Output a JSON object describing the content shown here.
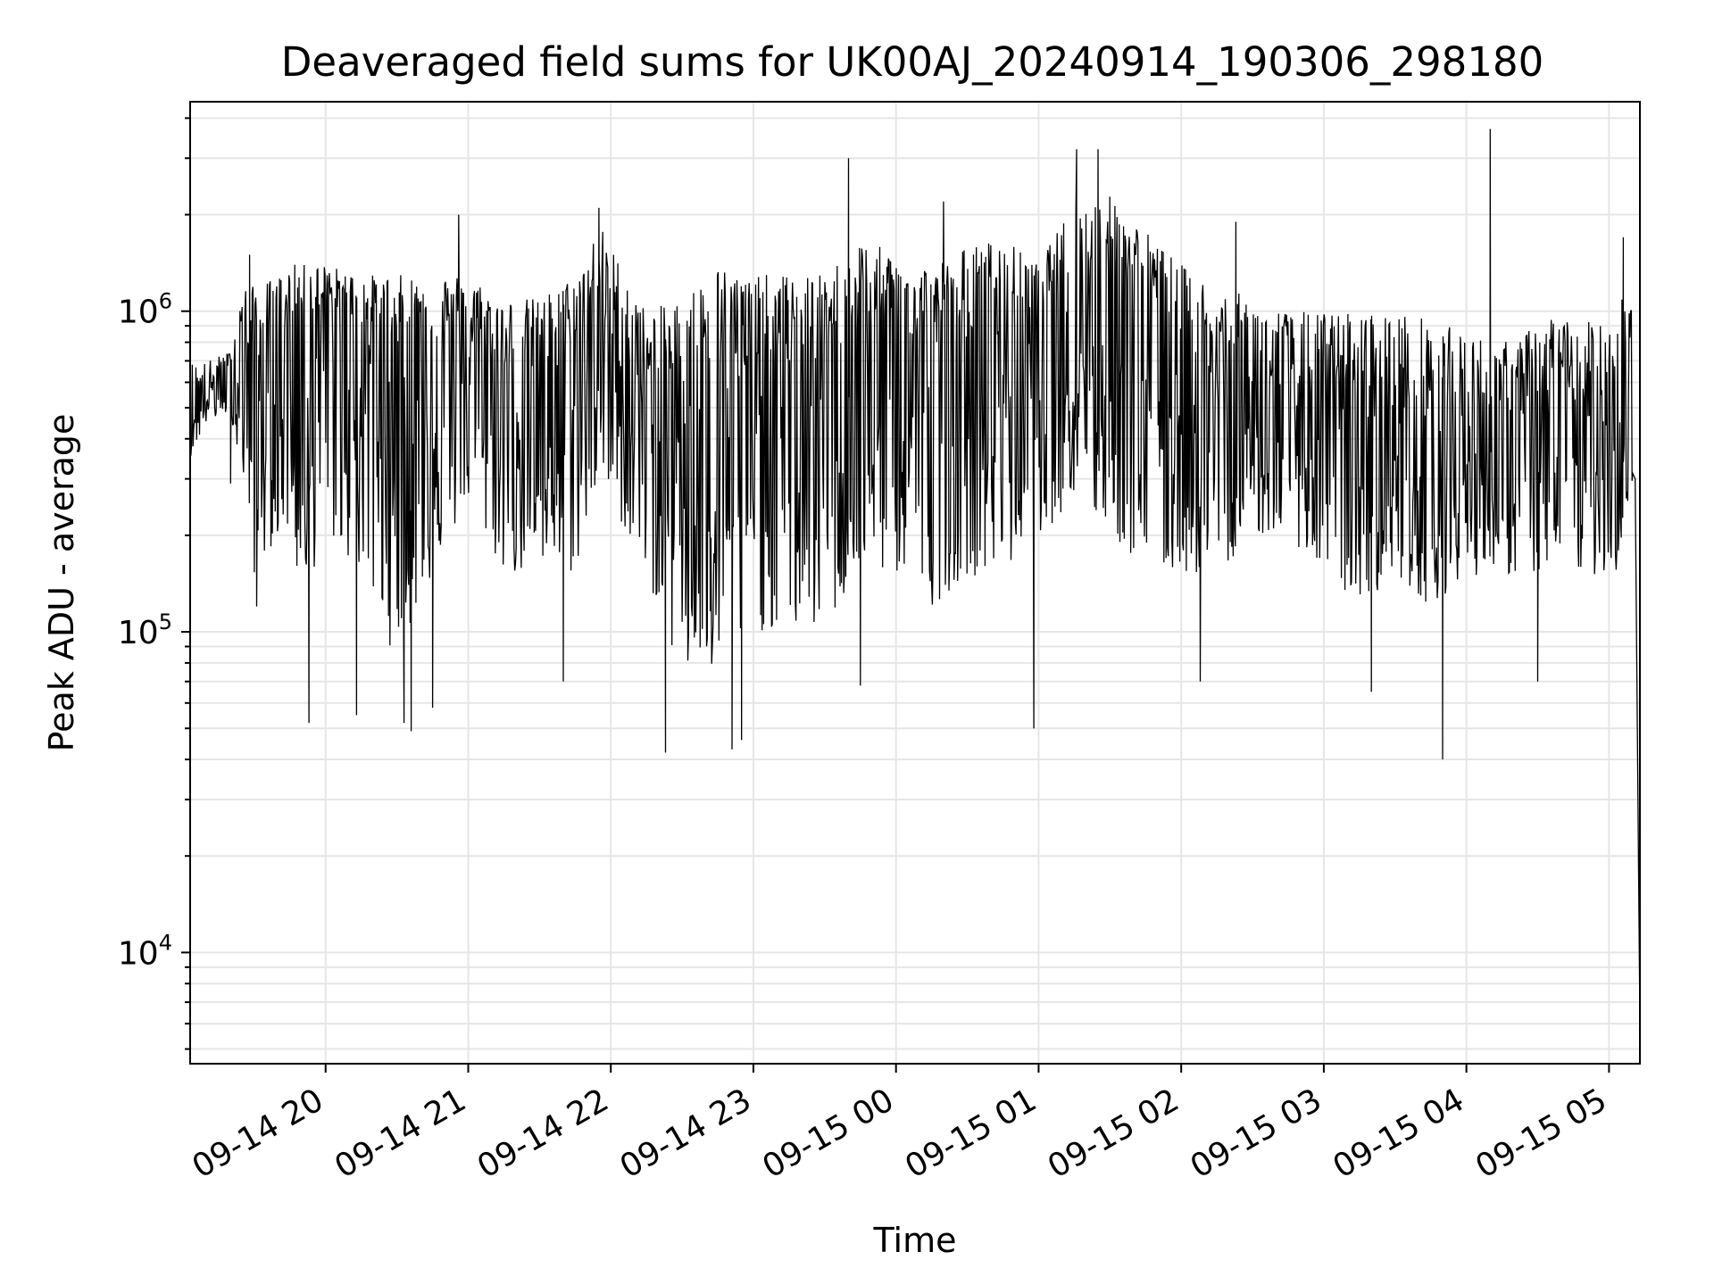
{
  "chart_data": {
    "type": "line",
    "title": "Deaveraged field sums for UK00AJ_20240914_190306_298180",
    "xlabel": "Time",
    "ylabel": "Peak ADU - average",
    "yscale": "log",
    "ylim": [
      4500,
      4500000
    ],
    "xlim": [
      "2024-09-14 19:03",
      "2024-09-15 05:13"
    ],
    "x_ticks": [
      {
        "value": "2024-09-14 20:00",
        "label": "09-14 20"
      },
      {
        "value": "2024-09-14 21:00",
        "label": "09-14 21"
      },
      {
        "value": "2024-09-14 22:00",
        "label": "09-14 22"
      },
      {
        "value": "2024-09-14 23:00",
        "label": "09-14 23"
      },
      {
        "value": "2024-09-15 00:00",
        "label": "09-15 00"
      },
      {
        "value": "2024-09-15 01:00",
        "label": "09-15 01"
      },
      {
        "value": "2024-09-15 02:00",
        "label": "09-15 02"
      },
      {
        "value": "2024-09-15 03:00",
        "label": "09-15 03"
      },
      {
        "value": "2024-09-15 04:00",
        "label": "09-15 04"
      },
      {
        "value": "2024-09-15 05:00",
        "label": "09-15 05"
      }
    ],
    "y_ticks": [
      {
        "value": 10000,
        "base": "10",
        "exp": "4"
      },
      {
        "value": 100000,
        "base": "10",
        "exp": "5"
      },
      {
        "value": 1000000,
        "base": "10",
        "exp": "6"
      }
    ],
    "grid": true,
    "line_color": "#000000",
    "grid_color": "#e6e6e6",
    "series": [
      {
        "x": [
          "2024-09-14 19:03",
          "2024-09-14 19:10",
          "2024-09-14 19:20",
          "2024-09-14 19:25",
          "2024-09-14 19:30",
          "2024-09-14 19:40",
          "2024-09-14 19:45",
          "2024-09-14 19:50",
          "2024-09-14 20:00",
          "2024-09-14 20:15",
          "2024-09-14 20:30",
          "2024-09-14 20:45",
          "2024-09-14 21:00",
          "2024-09-14 21:15",
          "2024-09-14 21:30",
          "2024-09-14 21:45",
          "2024-09-14 21:55",
          "2024-09-14 22:15",
          "2024-09-14 22:30",
          "2024-09-14 22:45",
          "2024-09-14 23:00",
          "2024-09-14 23:15",
          "2024-09-14 23:30",
          "2024-09-14 23:45",
          "2024-09-15 00:00",
          "2024-09-15 00:15",
          "2024-09-15 00:30",
          "2024-09-15 00:45",
          "2024-09-15 01:00",
          "2024-09-15 01:15",
          "2024-09-15 01:30",
          "2024-09-15 01:45",
          "2024-09-15 02:00",
          "2024-09-15 02:15",
          "2024-09-15 02:30",
          "2024-09-15 02:45",
          "2024-09-15 03:00",
          "2024-09-15 03:15",
          "2024-09-15 03:30",
          "2024-09-15 03:45",
          "2024-09-15 04:00",
          "2024-09-15 04:20",
          "2024-09-15 04:35",
          "2024-09-15 04:50",
          "2024-09-15 05:05",
          "2024-09-15 05:10",
          "2024-09-15 05:13"
        ],
        "y": [
          500000,
          550000,
          650000,
          800000,
          600000,
          700000,
          900000,
          950000,
          1000000,
          900000,
          700000,
          800000,
          850000,
          600000,
          650000,
          700000,
          900000,
          550000,
          600000,
          650000,
          600000,
          700000,
          650000,
          750000,
          800000,
          700000,
          750000,
          800000,
          850000,
          1100000,
          1200000,
          900000,
          700000,
          550000,
          500000,
          500000,
          450000,
          450000,
          400000,
          420000,
          400000,
          420000,
          480000,
          450000,
          600000,
          700000,
          6000
        ],
        "low_envelope": [
          350000,
          450000,
          480000,
          300000,
          150000,
          200000,
          200000,
          120000,
          200000,
          150000,
          80000,
          150000,
          250000,
          150000,
          150000,
          150000,
          300000,
          150000,
          70000,
          70000,
          100000,
          100000,
          100000,
          150000,
          150000,
          120000,
          150000,
          150000,
          200000,
          250000,
          200000,
          150000,
          150000,
          150000,
          200000,
          200000,
          150000,
          120000,
          150000,
          120000,
          150000,
          150000,
          150000,
          150000,
          150000,
          300000,
          6000
        ],
        "high_envelope": [
          700000,
          700000,
          750000,
          1200000,
          1200000,
          1300000,
          1400000,
          1400000,
          1400000,
          1300000,
          1300000,
          1300000,
          1300000,
          1100000,
          1100000,
          1300000,
          1900000,
          1000000,
          1100000,
          1400000,
          1300000,
          1300000,
          1300000,
          1700000,
          1500000,
          1400000,
          1600000,
          1700000,
          1400000,
          2200000,
          2300000,
          1800000,
          1400000,
          1200000,
          1100000,
          1000000,
          1000000,
          1000000,
          1000000,
          950000,
          850000,
          800000,
          1000000,
          900000,
          1200000,
          1100000,
          6000
        ],
        "spikes": [
          {
            "x": "2024-09-14 19:20",
            "y": 290000
          },
          {
            "x": "2024-09-14 19:28",
            "y": 1500000
          },
          {
            "x": "2024-09-14 19:31",
            "y": 120000
          },
          {
            "x": "2024-09-14 19:53",
            "y": 52000
          },
          {
            "x": "2024-09-14 20:13",
            "y": 55000
          },
          {
            "x": "2024-09-14 20:33",
            "y": 52000
          },
          {
            "x": "2024-09-14 20:36",
            "y": 49000
          },
          {
            "x": "2024-09-14 20:45",
            "y": 58000
          },
          {
            "x": "2024-09-14 20:56",
            "y": 2000000
          },
          {
            "x": "2024-09-14 21:40",
            "y": 70000
          },
          {
            "x": "2024-09-14 21:55",
            "y": 2100000
          },
          {
            "x": "2024-09-14 22:23",
            "y": 42000
          },
          {
            "x": "2024-09-14 22:51",
            "y": 43000
          },
          {
            "x": "2024-09-14 22:55",
            "y": 46000
          },
          {
            "x": "2024-09-14 23:40",
            "y": 3000000
          },
          {
            "x": "2024-09-14 23:45",
            "y": 68000
          },
          {
            "x": "2024-09-15 00:20",
            "y": 2200000
          },
          {
            "x": "2024-09-15 00:58",
            "y": 50000
          },
          {
            "x": "2024-09-15 01:16",
            "y": 3200000
          },
          {
            "x": "2024-09-15 01:25",
            "y": 3200000
          },
          {
            "x": "2024-09-15 02:08",
            "y": 70000
          },
          {
            "x": "2024-09-15 02:23",
            "y": 1900000
          },
          {
            "x": "2024-09-15 03:20",
            "y": 65000
          },
          {
            "x": "2024-09-15 03:50",
            "y": 40000
          },
          {
            "x": "2024-09-15 04:10",
            "y": 3700000
          },
          {
            "x": "2024-09-15 04:30",
            "y": 70000
          },
          {
            "x": "2024-09-15 05:06",
            "y": 1700000
          }
        ]
      }
    ]
  }
}
